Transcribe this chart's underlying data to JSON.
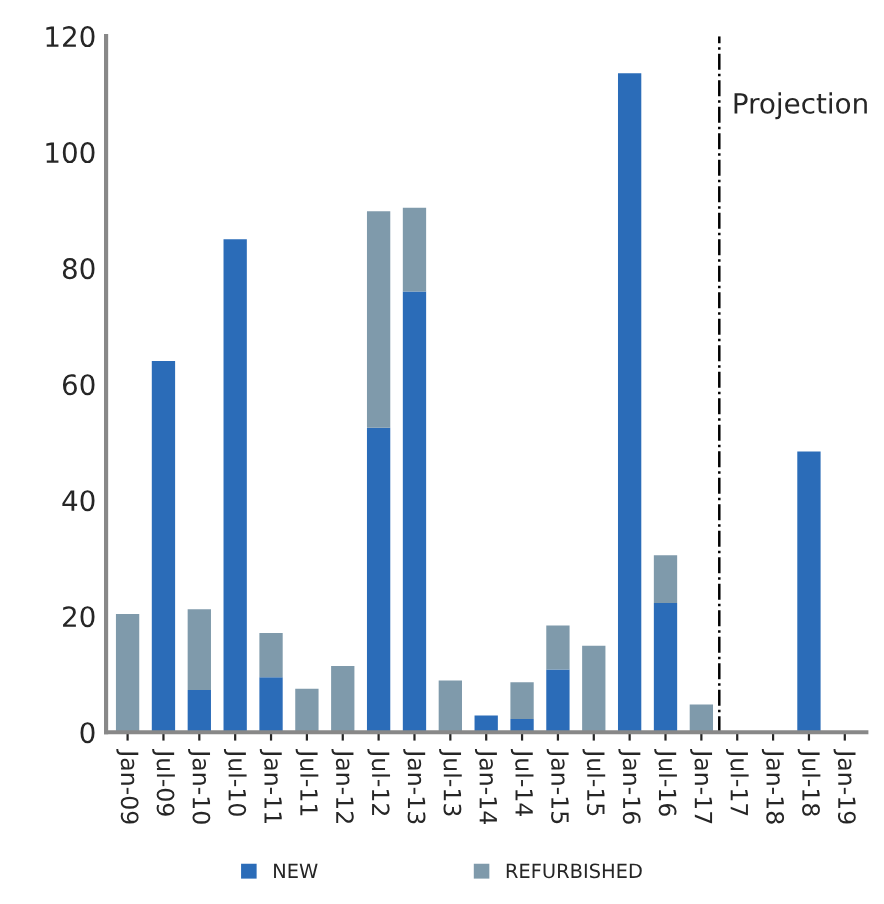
{
  "chart_data": {
    "type": "bar",
    "stacked": true,
    "categories": [
      "Jan-09",
      "Jul-09",
      "Jan-10",
      "Jul-10",
      "Jan-11",
      "Jul-11",
      "Jan-12",
      "Jul-12",
      "Jan-13",
      "Jul-13",
      "Jan-14",
      "Jul-14",
      "Jan-15",
      "Jul-15",
      "Jan-16",
      "Jul-16",
      "Jan-17",
      "Jul-17",
      "Jan-18",
      "Jul-18",
      "Jan-19"
    ],
    "series": [
      {
        "name": "NEW",
        "color": "#2b6cb8",
        "values": [
          0,
          64,
          7.3,
          85,
          9.5,
          0,
          0,
          52.5,
          76,
          0,
          2.9,
          2.3,
          10.8,
          0,
          113.6,
          22.3,
          0,
          null,
          null,
          null,
          null
        ]
      },
      {
        "name": "REFURBISHED",
        "color": "#7f9aab",
        "values": [
          20.4,
          0,
          13.9,
          0,
          7.6,
          7.5,
          11.4,
          37.3,
          14.4,
          8.9,
          0,
          6.3,
          7.6,
          14.9,
          0,
          8.2,
          4.8,
          null,
          null,
          null,
          null
        ]
      },
      {
        "color": "#2b6cb8",
        "values": [
          null,
          null,
          null,
          null,
          null,
          null,
          null,
          null,
          null,
          null,
          null,
          null,
          null,
          null,
          null,
          null,
          null,
          null,
          null,
          48.4,
          null
        ]
      }
    ],
    "ylim": [
      0,
      120
    ],
    "yticks": [
      0,
      20,
      40,
      60,
      80,
      100,
      120
    ],
    "annotations": [
      "Projection"
    ],
    "legend": "bottom",
    "grid": false
  }
}
